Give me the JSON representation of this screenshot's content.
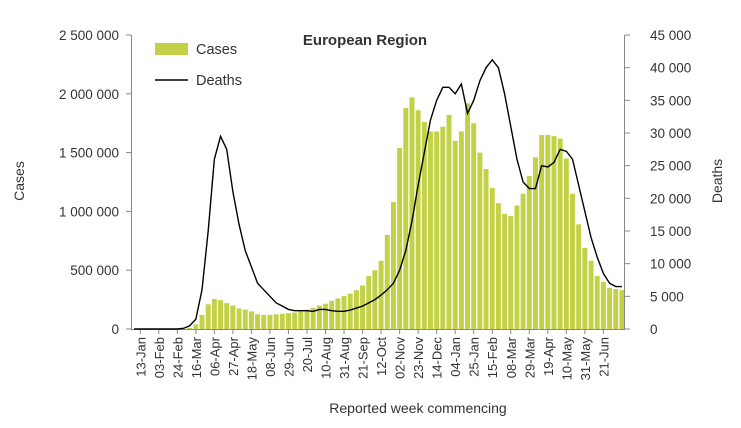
{
  "chart_data": {
    "type": "bar",
    "title": "European Region",
    "xlabel": "Reported week commencing",
    "ylabel": "Cases",
    "y2label": "Deaths",
    "ylim": [
      0,
      2500000
    ],
    "y2lim": [
      0,
      45000
    ],
    "y_ticks": [
      "0",
      "500 000",
      "1 000 000",
      "1 500 000",
      "2 000 000",
      "2 500 000"
    ],
    "y2_ticks": [
      "0",
      "5 000",
      "10 000",
      "15 000",
      "20 000",
      "25 000",
      "30 000",
      "35 000",
      "40 000",
      "45 000"
    ],
    "x_tick_labels": [
      "13-Jan",
      "03-Feb",
      "24-Feb",
      "16-Mar",
      "06-Apr",
      "27-Apr",
      "18-May",
      "08-Jun",
      "29-Jun",
      "20-Jul",
      "10-Aug",
      "31-Aug",
      "21-Sep",
      "12-Oct",
      "02-Nov",
      "23-Nov",
      "14-Dec",
      "04-Jan",
      "25-Jan",
      "15-Feb",
      "08-Mar",
      "29-Mar",
      "19-Apr",
      "10-May",
      "31-May",
      "21-Jun"
    ],
    "legend_position": "top-left",
    "grid": false,
    "colors": {
      "cases": "#c2d145",
      "deaths": "#000000",
      "text": "#333333",
      "axis": "#888888"
    },
    "series": [
      {
        "name": "Cases",
        "type": "bar",
        "axis": "left",
        "values": [
          0,
          0,
          0,
          0,
          0,
          0,
          0,
          0,
          0,
          10000,
          40000,
          120000,
          210000,
          255000,
          245000,
          220000,
          200000,
          175000,
          165000,
          150000,
          125000,
          120000,
          120000,
          125000,
          130000,
          135000,
          140000,
          150000,
          165000,
          180000,
          200000,
          215000,
          240000,
          260000,
          280000,
          300000,
          330000,
          370000,
          450000,
          500000,
          580000,
          800000,
          1080000,
          1540000,
          1880000,
          1970000,
          1860000,
          1760000,
          1680000,
          1680000,
          1720000,
          1820000,
          1600000,
          1680000,
          1920000,
          1750000,
          1500000,
          1360000,
          1200000,
          1070000,
          980000,
          960000,
          1050000,
          1150000,
          1300000,
          1460000,
          1650000,
          1650000,
          1640000,
          1620000,
          1450000,
          1150000,
          890000,
          690000,
          580000,
          450000,
          400000,
          350000,
          340000,
          330000
        ]
      },
      {
        "name": "Deaths",
        "type": "line",
        "axis": "right",
        "values": [
          0,
          0,
          0,
          0,
          0,
          0,
          0,
          0,
          100,
          500,
          1500,
          6000,
          15000,
          26000,
          29500,
          27500,
          21000,
          16000,
          12000,
          9500,
          7000,
          6000,
          5000,
          4000,
          3500,
          3000,
          2800,
          2800,
          2800,
          2700,
          3000,
          3000,
          2800,
          2700,
          2700,
          2900,
          3200,
          3500,
          4000,
          4500,
          5200,
          6000,
          7000,
          9000,
          12000,
          16500,
          22000,
          27000,
          32000,
          35000,
          37000,
          37000,
          36000,
          37500,
          33000,
          35000,
          38000,
          40000,
          41200,
          40000,
          36000,
          31000,
          26000,
          22500,
          21500,
          21500,
          25000,
          24800,
          25500,
          27500,
          27200,
          26000,
          22000,
          18000,
          14000,
          11000,
          8500,
          7000,
          6500,
          6500
        ]
      }
    ]
  }
}
